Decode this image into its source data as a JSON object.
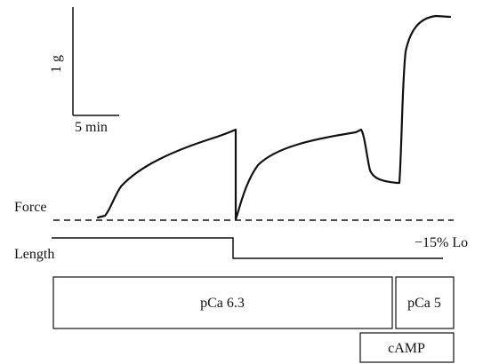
{
  "scale_bar": {
    "force_label": "1 g",
    "time_label": "5 min"
  },
  "labels": {
    "force": "Force",
    "length": "Length",
    "length_step": "−15% Lo"
  },
  "conditions": {
    "pca_low": "pCa 6.3",
    "pca_high": "pCa 5",
    "camp": "cAMP"
  }
}
